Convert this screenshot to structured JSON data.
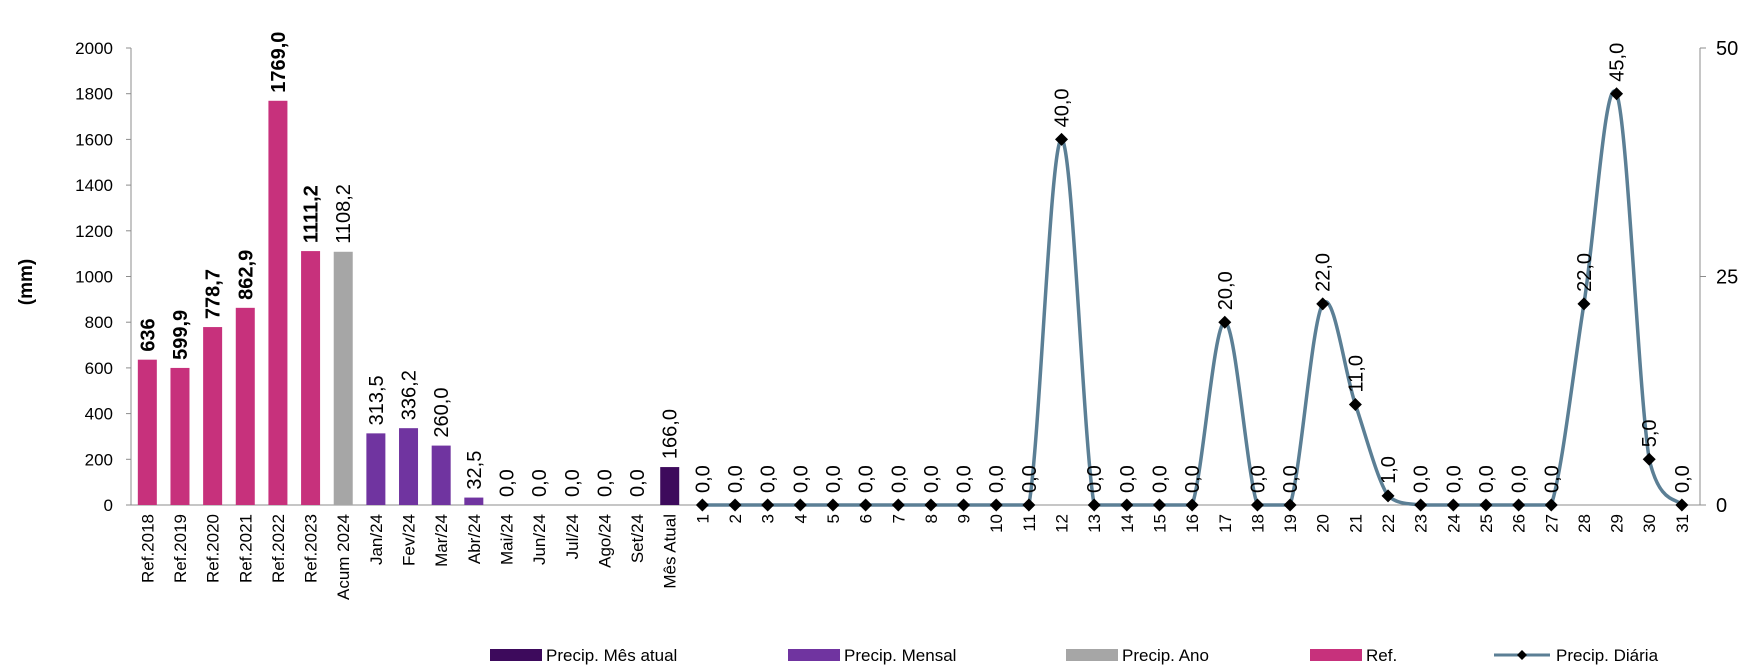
{
  "chart_data": {
    "type": "bar+line",
    "ylabel": "(mm)",
    "ylim_left": [
      0,
      2000
    ],
    "yticks_left": [
      "0",
      "200",
      "400",
      "600",
      "800",
      "1000",
      "1200",
      "1400",
      "1600",
      "1800",
      "2000"
    ],
    "ylim_right": [
      0,
      50
    ],
    "yticks_right": [
      "0",
      "25",
      "50"
    ],
    "bar_categories": [
      "Ref.2018",
      "Ref.2019",
      "Ref.2020",
      "Ref.2021",
      "Ref.2022",
      "Ref.2023",
      "Acum 2024",
      "Jan/24",
      "Fev/24",
      "Mar/24",
      "Abr/24",
      "Mai/24",
      "Jun/24",
      "Jul/24",
      "Ago/24",
      "Set/24",
      "Mês Atual"
    ],
    "bar_values": [
      636,
      599.9,
      778.7,
      862.9,
      1769.0,
      1111.2,
      1108.2,
      313.5,
      336.2,
      260.0,
      32.5,
      0.0,
      0.0,
      0.0,
      0.0,
      0.0,
      166.0
    ],
    "bar_labels": [
      "636",
      "599,9",
      "778,7",
      "862,9",
      "1769,0",
      "1111,2",
      "1108,2",
      "313,5",
      "336,2",
      "260,0",
      "32,5",
      "0,0",
      "0,0",
      "0,0",
      "0,0",
      "0,0",
      "166,0"
    ],
    "bar_series": [
      "Ref.",
      "Ref.",
      "Ref.",
      "Ref.",
      "Ref.",
      "Ref.",
      "Precip. Ano",
      "Precip. Mensal",
      "Precip. Mensal",
      "Precip. Mensal",
      "Precip. Mensal",
      "Precip. Mensal",
      "Precip. Mensal",
      "Precip. Mensal",
      "Precip. Mensal",
      "Precip. Mensal",
      "Precip. Mês atual"
    ],
    "bar_label_bold": [
      true,
      true,
      true,
      true,
      true,
      true,
      false,
      false,
      false,
      false,
      false,
      false,
      false,
      false,
      false,
      false,
      false
    ],
    "days": [
      "1",
      "2",
      "3",
      "4",
      "5",
      "6",
      "7",
      "8",
      "9",
      "10",
      "11",
      "12",
      "13",
      "14",
      "15",
      "16",
      "17",
      "18",
      "19",
      "20",
      "21",
      "22",
      "23",
      "24",
      "25",
      "26",
      "27",
      "28",
      "29",
      "30",
      "31"
    ],
    "daily_values": [
      0,
      0,
      0,
      0,
      0,
      0,
      0,
      0,
      0,
      0,
      0,
      40,
      0,
      0,
      0,
      0,
      20,
      0,
      0,
      22,
      11,
      1,
      0,
      0,
      0,
      0,
      0,
      22,
      45,
      5,
      0
    ],
    "daily_labels": [
      "0,0",
      "0,0",
      "0,0",
      "0,0",
      "0,0",
      "0,0",
      "0,0",
      "0,0",
      "0,0",
      "0,0",
      "0,0",
      "40,0",
      "0,0",
      "0,0",
      "0,0",
      "0,0",
      "20,0",
      "0,0",
      "0,0",
      "22,0",
      "11,0",
      "1,0",
      "0,0",
      "0,0",
      "0,0",
      "0,0",
      "0,0",
      "22,0",
      "45,0",
      "5,0",
      "0,0"
    ],
    "colors": {
      "Ref.": "#c7317c",
      "Precip. Ano": "#a6a6a6",
      "Precip. Mensal": "#7034a0",
      "Precip. Mês atual": "#3d0a5c",
      "line": "#5b7f95",
      "marker": "#000000"
    },
    "legend": [
      "Precip. Mês atual",
      "Precip. Mensal",
      "Precip. Ano",
      "Ref.",
      "Precip. Diária"
    ],
    "legend_position": "bottom"
  }
}
